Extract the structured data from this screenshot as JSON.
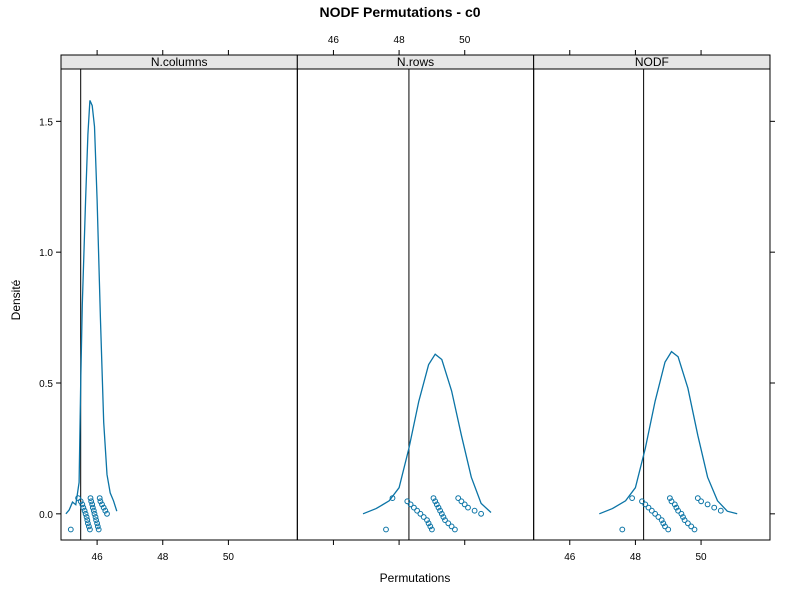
{
  "chart_data": {
    "type": "line",
    "title": "NODF Permutations - c0",
    "xlabel": "Permutations",
    "ylabel": "Densité",
    "xlim": [
      44.9,
      52.1
    ],
    "ylim": [
      -0.1,
      1.7
    ],
    "xticks": [
      46,
      48,
      50
    ],
    "xtick_labels": [
      "46",
      "48",
      "50"
    ],
    "yticks": [
      0.0,
      0.5,
      1.0,
      1.5
    ],
    "ytick_labels": [
      "0.0",
      "0.5",
      "1.0",
      "1.5"
    ],
    "grid": false,
    "line_color": "#0b74a6",
    "panels": [
      {
        "name": "N.columns",
        "observed": 45.5,
        "curve": [
          [
            45.05,
            0.0
          ],
          [
            45.15,
            0.015
          ],
          [
            45.25,
            0.045
          ],
          [
            45.35,
            0.035
          ],
          [
            45.45,
            0.12
          ],
          [
            45.5,
            0.5
          ],
          [
            45.55,
            0.8
          ],
          [
            45.65,
            1.2
          ],
          [
            45.72,
            1.45
          ],
          [
            45.78,
            1.58
          ],
          [
            45.85,
            1.56
          ],
          [
            45.92,
            1.48
          ],
          [
            46.0,
            1.2
          ],
          [
            46.1,
            0.75
          ],
          [
            46.2,
            0.35
          ],
          [
            46.3,
            0.15
          ],
          [
            46.4,
            0.08
          ],
          [
            46.5,
            0.05
          ],
          [
            46.6,
            0.01
          ]
        ],
        "points": [
          45.2,
          45.42,
          45.5,
          45.55,
          45.58,
          45.62,
          45.65,
          45.68,
          45.7,
          45.72,
          45.75,
          45.78,
          45.8,
          45.82,
          45.85,
          45.87,
          45.9,
          45.92,
          45.95,
          45.97,
          46.0,
          46.02,
          46.05,
          46.08,
          46.1,
          46.15,
          46.2,
          46.25,
          46.3
        ]
      },
      {
        "name": "N.rows",
        "observed": 48.3,
        "curve": [
          [
            46.9,
            0.0
          ],
          [
            47.3,
            0.02
          ],
          [
            47.7,
            0.05
          ],
          [
            48.0,
            0.1
          ],
          [
            48.3,
            0.25
          ],
          [
            48.6,
            0.43
          ],
          [
            48.9,
            0.57
          ],
          [
            49.1,
            0.61
          ],
          [
            49.3,
            0.59
          ],
          [
            49.6,
            0.47
          ],
          [
            49.9,
            0.3
          ],
          [
            50.2,
            0.14
          ],
          [
            50.5,
            0.04
          ],
          [
            50.8,
            0.005
          ]
        ],
        "points": [
          47.6,
          47.8,
          48.25,
          48.35,
          48.45,
          48.55,
          48.65,
          48.75,
          48.85,
          48.9,
          48.95,
          49.0,
          49.05,
          49.1,
          49.15,
          49.2,
          49.25,
          49.3,
          49.35,
          49.4,
          49.5,
          49.6,
          49.7,
          49.8,
          49.9,
          50.0,
          50.1,
          50.3,
          50.5
        ]
      },
      {
        "name": "NODF",
        "observed": 48.25,
        "curve": [
          [
            46.9,
            0.0
          ],
          [
            47.3,
            0.02
          ],
          [
            47.7,
            0.05
          ],
          [
            48.0,
            0.1
          ],
          [
            48.3,
            0.25
          ],
          [
            48.6,
            0.43
          ],
          [
            48.9,
            0.58
          ],
          [
            49.1,
            0.62
          ],
          [
            49.3,
            0.6
          ],
          [
            49.6,
            0.48
          ],
          [
            49.9,
            0.3
          ],
          [
            50.2,
            0.14
          ],
          [
            50.5,
            0.05
          ],
          [
            50.8,
            0.01
          ],
          [
            51.1,
            0.0
          ]
        ],
        "points": [
          47.6,
          47.9,
          48.2,
          48.3,
          48.4,
          48.5,
          48.6,
          48.7,
          48.8,
          48.85,
          48.9,
          49.0,
          49.05,
          49.1,
          49.2,
          49.25,
          49.3,
          49.4,
          49.45,
          49.5,
          49.6,
          49.7,
          49.8,
          49.9,
          50.0,
          50.2,
          50.4,
          50.6
        ]
      }
    ]
  }
}
